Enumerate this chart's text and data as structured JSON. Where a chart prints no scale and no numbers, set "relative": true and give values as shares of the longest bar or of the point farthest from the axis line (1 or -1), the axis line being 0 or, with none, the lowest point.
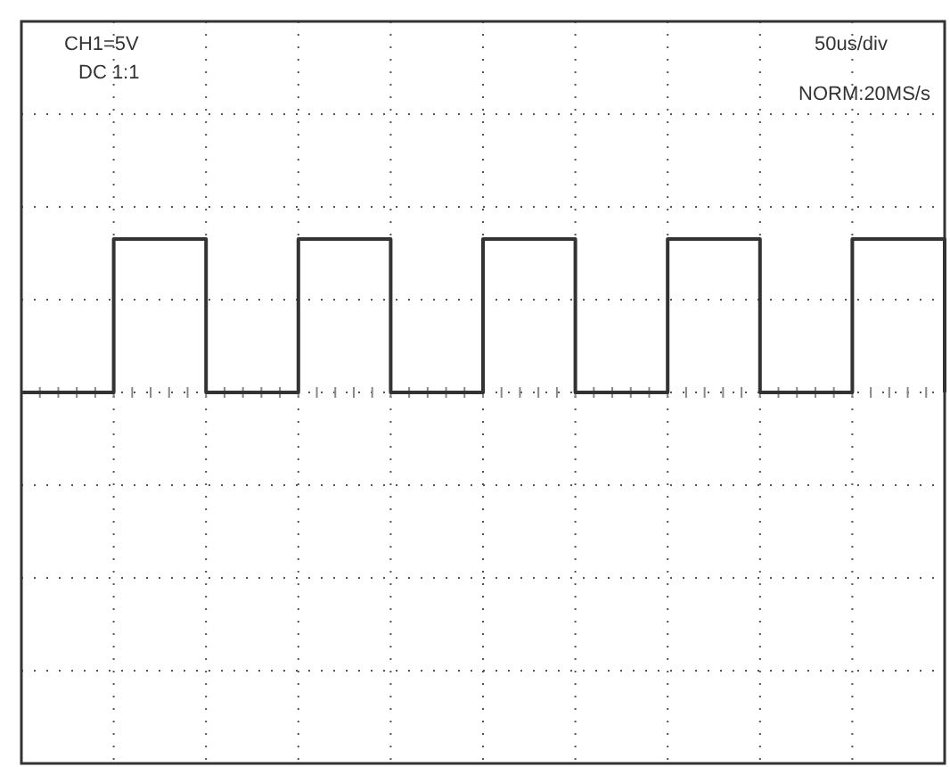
{
  "chart_data": {
    "type": "step",
    "relative": true,
    "categories": [
      null,
      null,
      null,
      null,
      null,
      null,
      null,
      null,
      null,
      null,
      null
    ],
    "series": [
      {
        "color": "#333333",
        "values": [
          0,
          1,
          0,
          1,
          0,
          1,
          0,
          1,
          0,
          1,
          0
        ]
      }
    ],
    "grid": true,
    "line_style": "solid",
    "marker": "none",
    "annotations": [
      "CH1=5V",
      "DC 1:1",
      "50us/div",
      "NORM:20MS/s"
    ]
  }
}
